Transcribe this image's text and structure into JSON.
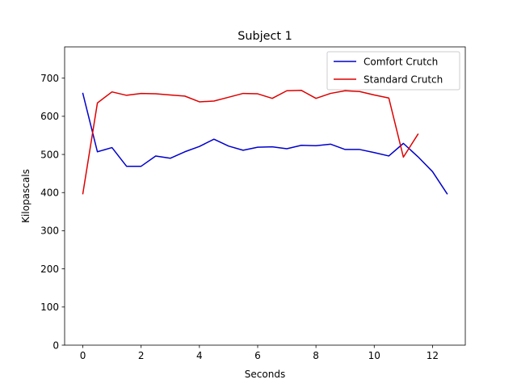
{
  "chart_data": {
    "type": "line",
    "title": "Subject 1",
    "xlabel": "Seconds",
    "ylabel": "Kilopascals",
    "xlim": [
      -0.625,
      13.125
    ],
    "ylim": [
      0,
      782
    ],
    "xticks": [
      0,
      2,
      4,
      6,
      8,
      10,
      12
    ],
    "yticks": [
      0,
      100,
      200,
      300,
      400,
      500,
      600,
      700
    ],
    "grid": false,
    "legend_position": "upper-right",
    "series": [
      {
        "name": "Comfort Crutch",
        "color": "#0000cc",
        "x": [
          0,
          0.5,
          1,
          1.5,
          2,
          2.5,
          3,
          3.5,
          4,
          4.5,
          5,
          5.5,
          6,
          6.5,
          7,
          7.5,
          8,
          8.5,
          9,
          9.5,
          10,
          10.5,
          11,
          11.5,
          12,
          12.5
        ],
        "y": [
          660,
          507,
          518,
          469,
          469,
          496,
          490,
          507,
          521,
          540,
          522,
          511,
          519,
          520,
          515,
          524,
          523,
          527,
          513,
          513,
          505,
          496,
          529,
          494,
          455,
          397
        ]
      },
      {
        "name": "Standard Crutch",
        "color": "#dd0000",
        "x": [
          0,
          0.5,
          1,
          1.5,
          2,
          2.5,
          3,
          3.5,
          4,
          4.5,
          5,
          5.5,
          6,
          6.5,
          7,
          7.5,
          8,
          8.5,
          9,
          9.5,
          10,
          10.5,
          11,
          11.5
        ],
        "y": [
          397,
          635,
          664,
          655,
          660,
          659,
          656,
          653,
          638,
          640,
          650,
          660,
          659,
          647,
          667,
          668,
          647,
          660,
          667,
          665,
          656,
          648,
          493,
          553
        ]
      }
    ]
  }
}
